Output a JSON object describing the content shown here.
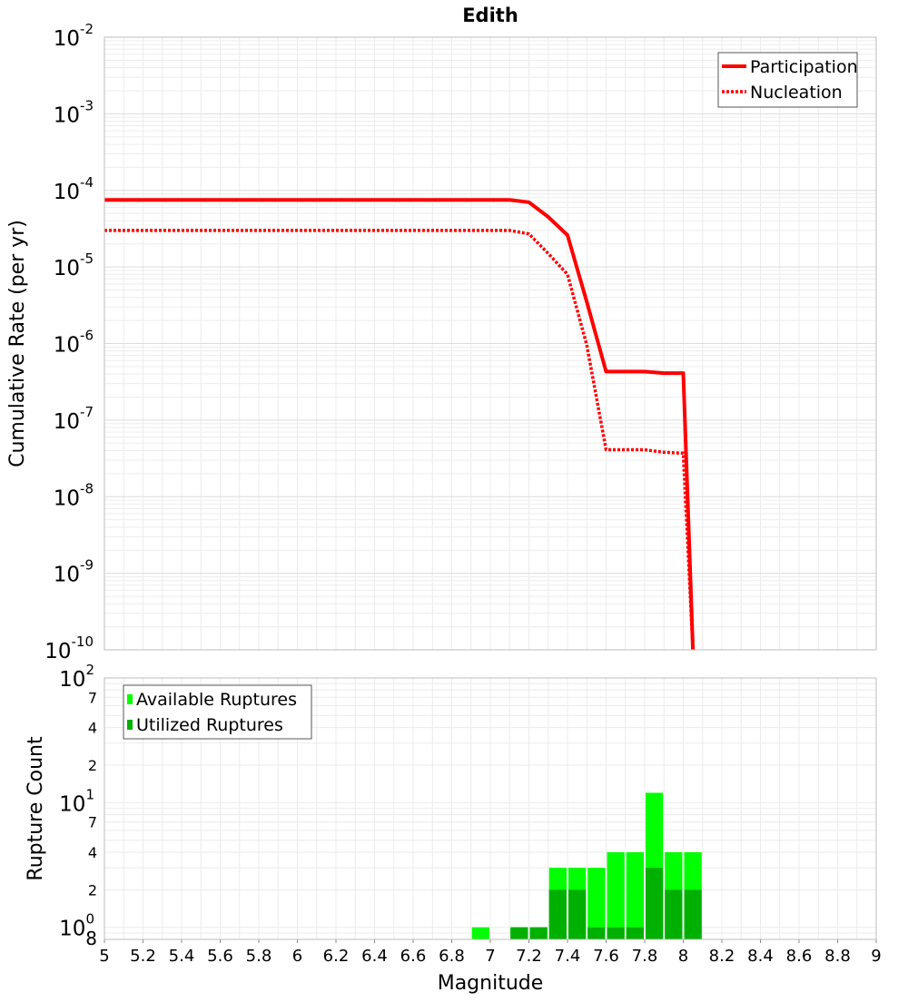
{
  "chart_data": [
    {
      "type": "line",
      "title": "Edith",
      "ylabel": "Cumulative Rate (per yr)",
      "xlabel": "",
      "xlim": [
        5,
        9
      ],
      "ylim": [
        1e-10,
        0.01
      ],
      "yscale": "log",
      "grid": true,
      "legend_position": "top-right",
      "y_tick_exponents": [
        "-2",
        "-3",
        "-4",
        "-5",
        "-6",
        "-7",
        "-8",
        "-9",
        "-10"
      ],
      "y_tick_base": "10",
      "series": [
        {
          "name": "Participation",
          "style": "solid",
          "color": "#ff0000",
          "x": [
            5.0,
            7.1,
            7.2,
            7.3,
            7.4,
            7.5,
            7.6,
            7.7,
            7.8,
            7.9,
            8.0,
            8.05
          ],
          "y": [
            7.5e-05,
            7.5e-05,
            7e-05,
            4.5e-05,
            2.6e-05,
            3.5e-06,
            4.3e-07,
            4.3e-07,
            4.3e-07,
            4.1e-07,
            4.1e-07,
            1e-10
          ]
        },
        {
          "name": "Nucleation",
          "style": "dotted",
          "color": "#ff0000",
          "x": [
            5.0,
            7.1,
            7.2,
            7.3,
            7.4,
            7.5,
            7.6,
            7.7,
            7.8,
            7.9,
            8.0,
            8.05
          ],
          "y": [
            3e-05,
            3e-05,
            2.7e-05,
            1.5e-05,
            8e-06,
            9.5e-07,
            4.1e-08,
            4.1e-08,
            4.1e-08,
            3.8e-08,
            3.7e-08,
            1e-10
          ]
        }
      ]
    },
    {
      "type": "bar",
      "title": "",
      "xlabel": "Magnitude",
      "ylabel": "Rupture Count",
      "xlim": [
        5,
        9
      ],
      "ylim": [
        0.8,
        100
      ],
      "yscale": "log",
      "grid": true,
      "legend_position": "top-left",
      "x_ticks": [
        "5",
        "5.2",
        "5.4",
        "5.6",
        "5.8",
        "6",
        "6.2",
        "6.4",
        "6.6",
        "6.8",
        "7",
        "7.2",
        "7.4",
        "7.6",
        "7.8",
        "8",
        "8.2",
        "8.4",
        "8.6",
        "8.8",
        "9"
      ],
      "y_major_ticks": [
        {
          "base": "10",
          "exp": "2"
        },
        {
          "base": "10",
          "exp": "1"
        },
        {
          "base": "10",
          "exp": "0"
        }
      ],
      "y_minor_labels": [
        "7",
        "4",
        "2",
        "7",
        "4",
        "2",
        "8"
      ],
      "bin_width": 0.1,
      "bin_centers": [
        6.95,
        7.05,
        7.15,
        7.25,
        7.35,
        7.45,
        7.55,
        7.65,
        7.75,
        7.85,
        7.95,
        8.05
      ],
      "series": [
        {
          "name": "Available Ruptures",
          "color": "#00ff00",
          "values": [
            1,
            0,
            1,
            1,
            3,
            3,
            3,
            4,
            4,
            12,
            4,
            4
          ]
        },
        {
          "name": "Utilized Ruptures",
          "color": "#00b000",
          "values": [
            0,
            0,
            1,
            1,
            2,
            2,
            1,
            1,
            1,
            3,
            2,
            2
          ]
        }
      ]
    }
  ]
}
